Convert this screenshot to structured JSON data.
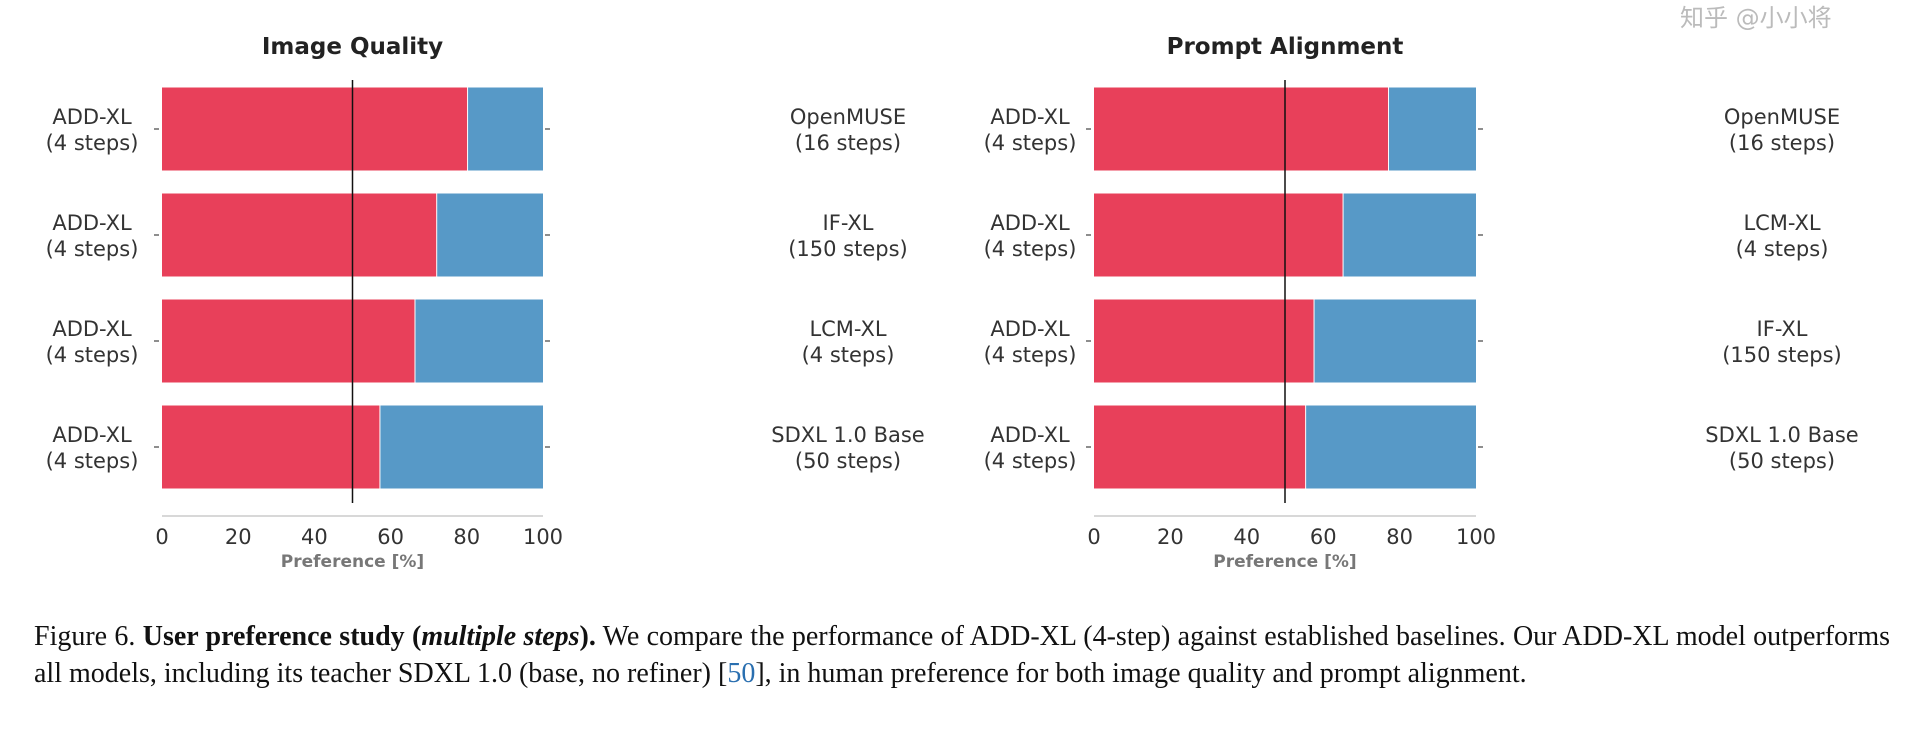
{
  "chart_data": [
    {
      "type": "bar",
      "stacked": true,
      "orientation": "horizontal",
      "title": "Image Quality",
      "xlabel": "Preference [%]",
      "xlim": [
        0,
        100
      ],
      "xticks": [
        "0",
        "20",
        "40",
        "60",
        "80",
        "100"
      ],
      "reference_line": 50,
      "left_labels": [
        [
          "ADD-XL",
          "(4 steps)"
        ],
        [
          "ADD-XL",
          "(4 steps)"
        ],
        [
          "ADD-XL",
          "(4 steps)"
        ],
        [
          "ADD-XL",
          "(4 steps)"
        ]
      ],
      "right_labels": [
        [
          "OpenMUSE",
          "(16 steps)"
        ],
        [
          "IF-XL",
          "(150 steps)"
        ],
        [
          "LCM-XL",
          "(4 steps)"
        ],
        [
          "SDXL 1.0 Base",
          "(50 steps)"
        ]
      ],
      "values": [
        80.2,
        72.1,
        66.4,
        57.2
      ],
      "colors": {
        "add_xl": "#e8405a",
        "baseline": "#5799c7"
      },
      "grid": false
    },
    {
      "type": "bar",
      "stacked": true,
      "orientation": "horizontal",
      "title": "Prompt Alignment",
      "xlabel": "Preference [%]",
      "xlim": [
        0,
        100
      ],
      "xticks": [
        "0",
        "20",
        "40",
        "60",
        "80",
        "100"
      ],
      "reference_line": 50,
      "left_labels": [
        [
          "ADD-XL",
          "(4 steps)"
        ],
        [
          "ADD-XL",
          "(4 steps)"
        ],
        [
          "ADD-XL",
          "(4 steps)"
        ],
        [
          "ADD-XL",
          "(4 steps)"
        ]
      ],
      "right_labels": [
        [
          "OpenMUSE",
          "(16 steps)"
        ],
        [
          "LCM-XL",
          "(4 steps)"
        ],
        [
          "IF-XL",
          "(150 steps)"
        ],
        [
          "SDXL 1.0 Base",
          "(50 steps)"
        ]
      ],
      "values": [
        77.1,
        65.2,
        57.6,
        55.4
      ],
      "colors": {
        "add_xl": "#e8405a",
        "baseline": "#5799c7"
      },
      "grid": false
    }
  ],
  "caption": {
    "label": "Figure 6.",
    "bold_title": "User preference study (",
    "bold_italic": "multiple steps",
    "bold_close": ").",
    "text_1": " We compare the performance of ADD-XL (4-step) against established baselines. Our ADD-XL model outperforms all models, including its teacher SDXL 1.0 (base, no refiner) [",
    "ref": "50",
    "text_2": "], in human preference for both image quality and prompt alignment."
  },
  "watermark": "知乎 @小小将"
}
